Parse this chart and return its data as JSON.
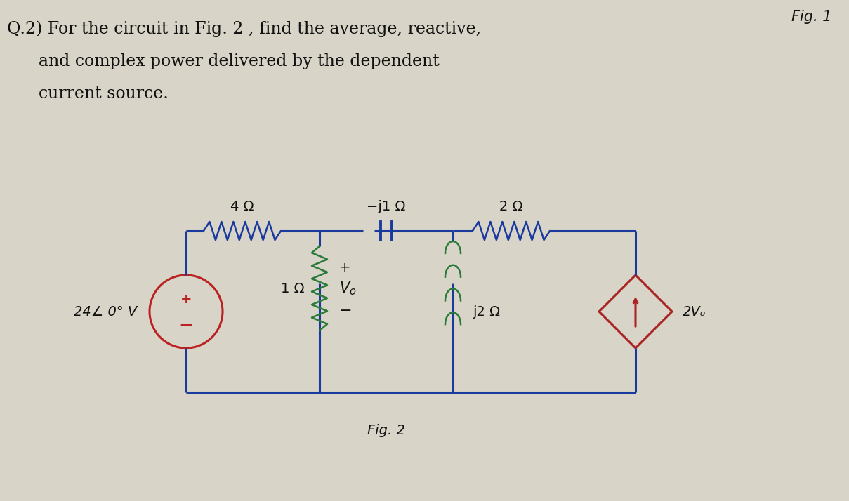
{
  "title_fig": "Fig. 1",
  "question_text_line1": "Q.2) For the circuit in Fig. 2 , find the average, reactive,",
  "question_text_line2": "and complex power delivered by the dependent",
  "question_text_line3": "current source.",
  "fig_label": "Fig. 2",
  "background_color": "#d8d4c8",
  "circuit_color": "#1a3a9e",
  "resistor_color_green": "#2a7a3a",
  "capacitor_color": "#1a3a9e",
  "source_circle_color": "#bb2222",
  "dependent_source_color": "#aa2222",
  "text_color": "#111111",
  "label_4ohm": "4 Ω",
  "label_neg_j1ohm": "−j1 Ω",
  "label_2ohm": "2 Ω",
  "label_1ohm": "1 Ω",
  "label_j2ohm": "j2 Ω",
  "label_2Vo": "2Vₒ",
  "label_24V": "24∠ 0° V"
}
